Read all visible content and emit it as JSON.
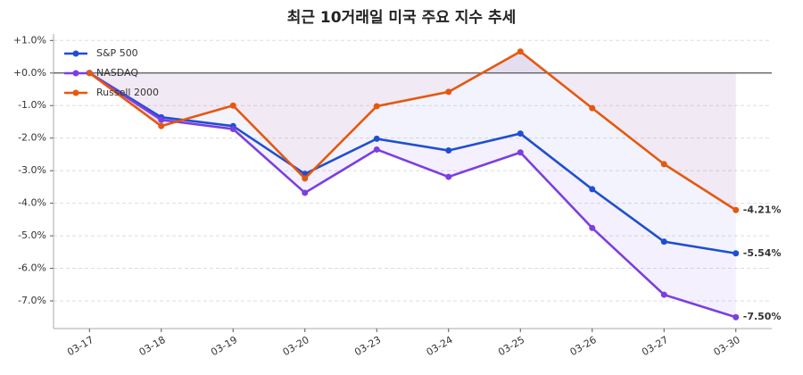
{
  "chart_data": {
    "type": "line",
    "title": "최근 10거래일 미국 주요 지수 추세",
    "categories": [
      "03-17",
      "03-18",
      "03-19",
      "03-20",
      "03-23",
      "03-24",
      "03-25",
      "03-26",
      "03-27",
      "03-30"
    ],
    "series": [
      {
        "name": "S&P 500",
        "color": "#1f4fd1",
        "values": [
          0,
          -1.36,
          -1.63,
          -3.1,
          -2.02,
          -2.38,
          -1.86,
          -3.57,
          -5.18,
          -5.54
        ],
        "end_label": "-5.54%"
      },
      {
        "name": "NASDAQ",
        "color": "#7b3fe0",
        "values": [
          0,
          -1.44,
          -1.72,
          -3.68,
          -2.35,
          -3.19,
          -2.44,
          -4.76,
          -6.81,
          -7.5
        ],
        "end_label": "-7.50%"
      },
      {
        "name": "Russell 2000",
        "color": "#e5580e",
        "values": [
          0,
          -1.63,
          -1.0,
          -3.24,
          -1.02,
          -0.58,
          0.66,
          -1.08,
          -2.8,
          -4.21
        ],
        "end_label": "-4.21%"
      }
    ],
    "ylim": [
      -7.85,
      1.2
    ],
    "yticks": [
      {
        "value": 1,
        "label": "+1.0%"
      },
      {
        "value": 0,
        "label": "+0.0%"
      },
      {
        "value": -1,
        "label": "-1.0%"
      },
      {
        "value": -2,
        "label": "-2.0%"
      },
      {
        "value": -3,
        "label": "-3.0%"
      },
      {
        "value": -4,
        "label": "-4.0%"
      },
      {
        "value": -5,
        "label": "-5.0%"
      },
      {
        "value": -6,
        "label": "-6.0%"
      },
      {
        "value": -7,
        "label": "-7.0%"
      }
    ],
    "grid": true,
    "legend": "upper-left"
  }
}
